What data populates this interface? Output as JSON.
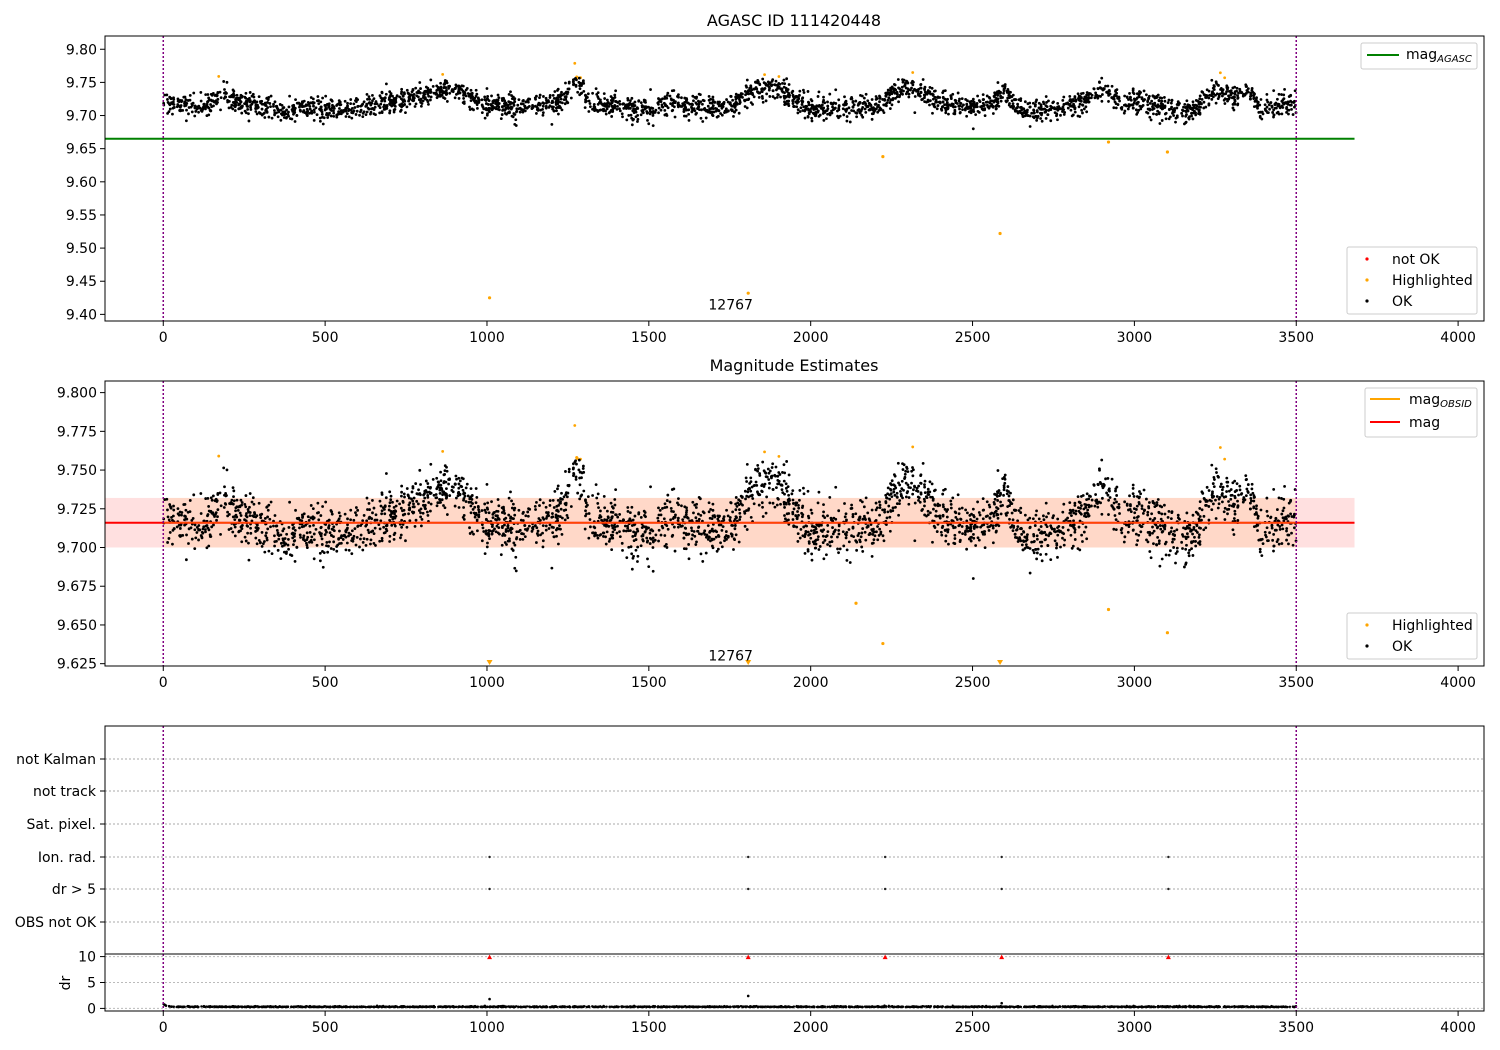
{
  "figure": {
    "panel1_title": "AGASC ID 111420448",
    "panel2_title": "Magnitude Estimates"
  },
  "colors": {
    "ok": "#000000",
    "highlighted": "#ffa500",
    "not_ok": "#ff0000",
    "mag_agasc": "#008000",
    "mag_obsid": "#ffa500",
    "mag": "#ff0000",
    "band": "#ffc8c8",
    "obs_line": "#800080"
  },
  "chart_data": [
    {
      "type": "scatter",
      "title": "AGASC ID 111420448",
      "xlim": [
        -180,
        4080
      ],
      "ylim": [
        9.39,
        9.82
      ],
      "xticks": [
        0,
        500,
        1000,
        1500,
        2000,
        2500,
        3000,
        3500,
        4000
      ],
      "yticks": [
        9.4,
        9.45,
        9.5,
        9.55,
        9.6,
        9.65,
        9.7,
        9.75,
        9.8
      ],
      "ytick_labels": [
        "9.40",
        "9.45",
        "9.50",
        "9.55",
        "9.60",
        "9.65",
        "9.70",
        "9.75",
        "9.80"
      ],
      "mag_agasc": 9.665,
      "annotation": {
        "text": "12767",
        "x": 1755,
        "y": 9.41
      },
      "outliers": [
        {
          "x": 1008,
          "y": 9.425
        },
        {
          "x": 1807,
          "y": 9.432
        },
        {
          "x": 2223,
          "y": 9.638
        },
        {
          "x": 2585,
          "y": 9.522
        },
        {
          "x": 2920,
          "y": 9.66
        },
        {
          "x": 3102,
          "y": 9.645
        }
      ],
      "legend_upper": [
        "mag",
        "AGASC"
      ],
      "legend_lower": [
        "not OK",
        "Highlighted",
        "OK"
      ],
      "legend_positions": [
        "upper right",
        "lower right"
      ]
    },
    {
      "type": "scatter",
      "title": "Magnitude Estimates",
      "xlim": [
        -180,
        4080
      ],
      "ylim": [
        9.6235,
        9.8075
      ],
      "xticks": [
        0,
        500,
        1000,
        1500,
        2000,
        2500,
        3000,
        3500,
        4000
      ],
      "yticks": [
        9.625,
        9.65,
        9.675,
        9.7,
        9.725,
        9.75,
        9.775,
        9.8
      ],
      "ytick_labels": [
        "9.625",
        "9.650",
        "9.675",
        "9.700",
        "9.725",
        "9.750",
        "9.775",
        "9.800"
      ],
      "mag": 9.716,
      "mag_band": [
        9.7,
        9.732
      ],
      "annotation": {
        "text": "12767",
        "x": 1755,
        "y": 9.629
      },
      "outliers": [
        {
          "x": 2140,
          "y": 9.664
        },
        {
          "x": 2223,
          "y": 9.638
        },
        {
          "x": 2920,
          "y": 9.66
        },
        {
          "x": 3102,
          "y": 9.645
        }
      ],
      "below_range_markers": [
        1008,
        1807,
        2585
      ],
      "legend_upper": [
        "mag",
        "OBSID",
        "mag"
      ],
      "legend_lower": [
        "Highlighted",
        "OK"
      ],
      "legend_positions": [
        "upper right",
        "lower right"
      ]
    },
    {
      "type": "scatter",
      "xlim": [
        -180,
        4080
      ],
      "flag_rows": [
        "not Kalman",
        "not track",
        "Sat. pixel.",
        "Ion. rad.",
        "dr > 5",
        "OBS not OK"
      ],
      "flag_points": {
        "Ion. rad.": [
          1008,
          1807,
          2230,
          2590,
          3105
        ],
        "dr > 5": [
          1008,
          1807,
          2230,
          2590,
          3105
        ]
      },
      "dr_ylabel": "dr",
      "dr_yticks": [
        0,
        5,
        10
      ],
      "dr_ylim": [
        -0.5,
        10.5
      ],
      "dr_capped_points": [
        1008,
        1807,
        2230,
        2590,
        3105
      ],
      "dr_spikes": [
        {
          "x": 1008,
          "y": 1.8
        },
        {
          "x": 1807,
          "y": 2.4
        },
        {
          "x": 2590,
          "y": 1.0
        }
      ],
      "xticks": [
        0,
        500,
        1000,
        1500,
        2000,
        2500,
        3000,
        3500,
        4000
      ]
    }
  ],
  "obs_lines": [
    0,
    3500
  ],
  "data_extent": [
    0,
    3500
  ],
  "line_extent": [
    -180,
    3680
  ]
}
